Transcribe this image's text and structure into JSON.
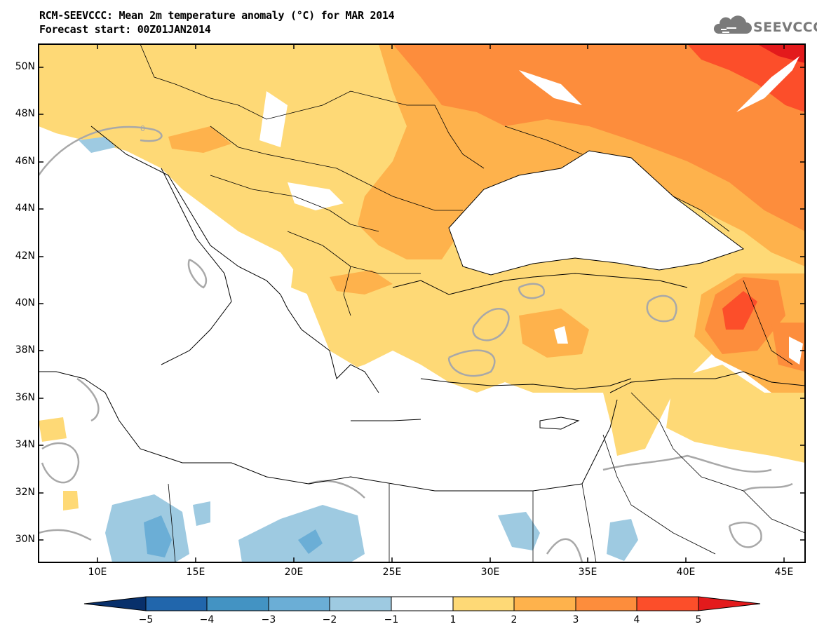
{
  "header": {
    "title_line1": "RCM-SEEVCCC: Mean 2m temperature anomaly (°C) for MAR 2014",
    "title_line2": "Forecast start: 00Z01JAN2014"
  },
  "logo": {
    "text": "SEEVCCC",
    "icon": "cloud-logo-icon"
  },
  "map": {
    "lat_labels": [
      "50N",
      "48N",
      "46N",
      "44N",
      "42N",
      "40N",
      "38N",
      "36N",
      "34N",
      "32N",
      "30N"
    ],
    "lon_labels": [
      "10E",
      "15E",
      "20E",
      "25E",
      "30E",
      "35E",
      "40E",
      "45E"
    ],
    "contour_label": "0"
  },
  "colorbar": {
    "labels": [
      "−5",
      "−4",
      "−3",
      "−2",
      "−1",
      "1",
      "2",
      "3",
      "4",
      "5"
    ],
    "colors": [
      "#08306b",
      "#2166ac",
      "#4393c3",
      "#6baed6",
      "#9ecae1",
      "#ffffff",
      "#fed976",
      "#feb24c",
      "#fd8d3c",
      "#fc4e2a",
      "#e31a1c"
    ]
  },
  "palette": {
    "anom_1_2": "#fed976",
    "anom_2_3": "#feb24c",
    "anom_3_4": "#fd8d3c",
    "anom_4_5": "#fc4e2a",
    "anom_5_plus": "#e31a1c",
    "anom_m1_m2": "#9ecae1",
    "anom_m2_m3": "#6baed6",
    "zero_contour": "#a8a8a8"
  }
}
